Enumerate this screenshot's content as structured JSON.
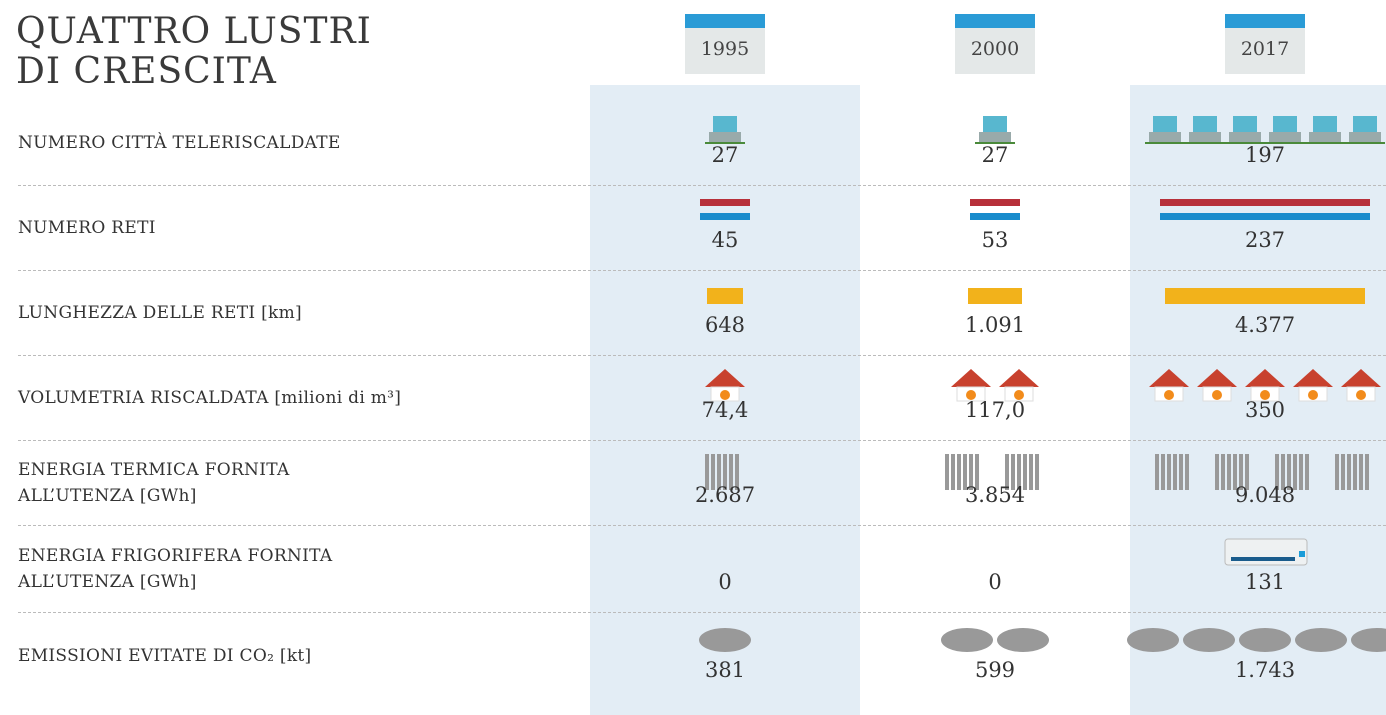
{
  "title": [
    "QUATTRO LUSTRI",
    "DI CRESCITA"
  ],
  "years": [
    "1995",
    "2000",
    "2017"
  ],
  "rows": [
    {
      "label": [
        "NUMERO CITTÀ TELERISCALDATE"
      ],
      "values": [
        "27",
        "27",
        "197"
      ]
    },
    {
      "label": [
        "NUMERO RETI"
      ],
      "values": [
        "45",
        "53",
        "237"
      ]
    },
    {
      "label": [
        "LUNGHEZZA DELLE RETI [km]"
      ],
      "values": [
        "648",
        "1.091",
        "4.377"
      ]
    },
    {
      "label": [
        "VOLUMETRIA RISCALDATA [milioni di m³]"
      ],
      "values": [
        "74,4",
        "117,0",
        "350"
      ]
    },
    {
      "label": [
        "ENERGIA TERMICA FORNITA",
        "ALL’UTENZA [GWh]"
      ],
      "values": [
        "2.687",
        "3.854",
        "9.048"
      ]
    },
    {
      "label": [
        "ENERGIA FRIGORIFERA FORNITA",
        "ALL’UTENZA [GWh]"
      ],
      "values": [
        "0",
        "0",
        "131"
      ]
    },
    {
      "label": [
        "EMISSIONI EVITATE DI CO₂ [kt]"
      ],
      "values": [
        "381",
        "599",
        "1.743"
      ]
    }
  ]
}
